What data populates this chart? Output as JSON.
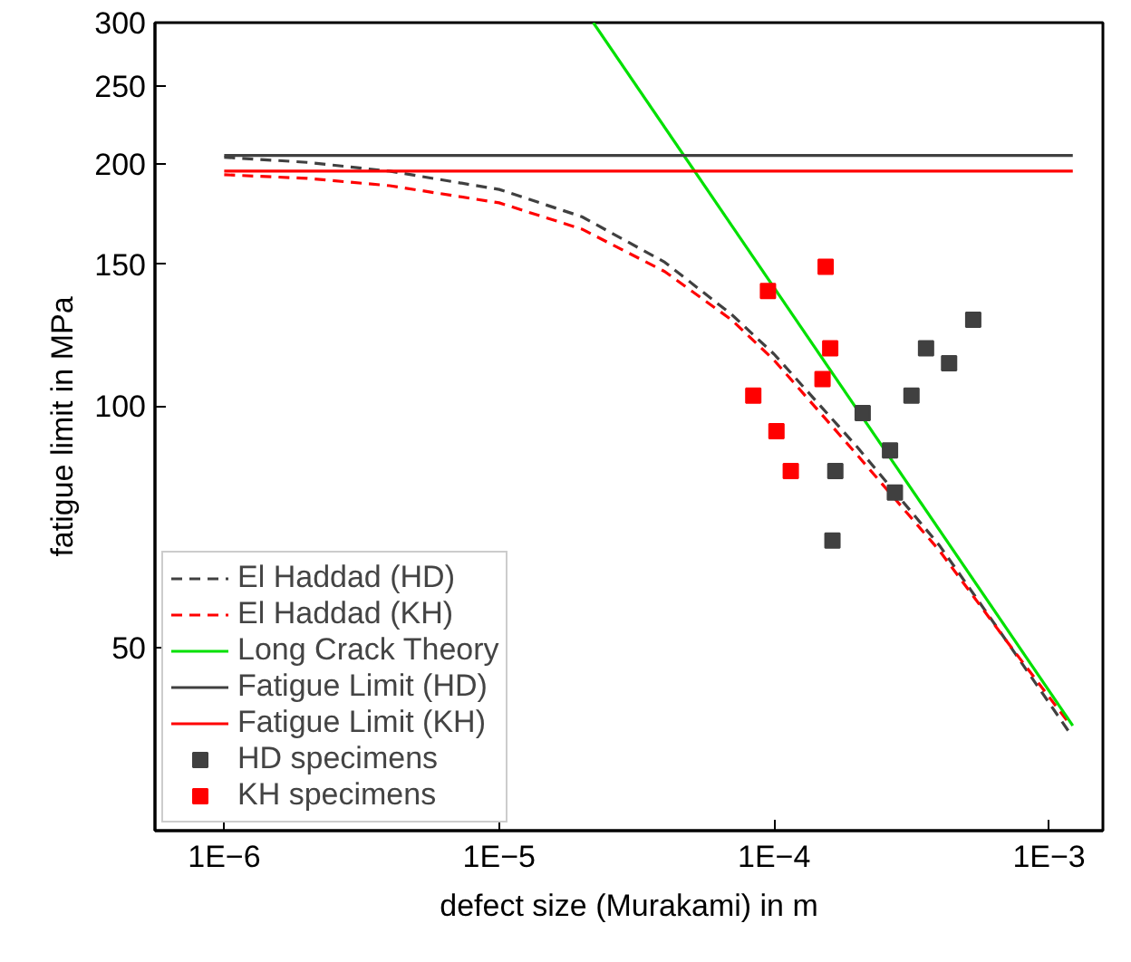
{
  "chart_data": {
    "type": "line",
    "xlabel": "defect size (Murakami) in m",
    "ylabel": "fatigue limit in MPa",
    "log": "xy",
    "grid": false,
    "legend": "bottom left",
    "xlim": [
      5.6e-07,
      0.00157
    ],
    "ylim": [
      29.6,
      300
    ],
    "xticks": [
      {
        "value": 1e-06,
        "label": "1E−6"
      },
      {
        "value": 1e-05,
        "label": "1E−5"
      },
      {
        "value": 0.0001,
        "label": "1E−4"
      },
      {
        "value": 0.001,
        "label": "1E−3"
      }
    ],
    "yticks": [
      50,
      100,
      150,
      200,
      250,
      300
    ],
    "series": [
      {
        "name": "El Haddad (HD)",
        "line_style": "dashed",
        "color": "#404040",
        "x": [
          1e-06,
          2e-06,
          4e-06,
          1e-05,
          2e-05,
          4e-05,
          7e-05,
          0.0001,
          0.0002,
          0.0004,
          0.0007,
          0.0012
        ],
        "values": [
          204,
          201,
          196,
          186,
          172,
          151,
          130,
          116,
          89,
          67,
          51,
          39
        ]
      },
      {
        "name": "El Haddad (KH)",
        "line_style": "dashed",
        "color": "#ff0000",
        "x": [
          1e-06,
          2e-06,
          4e-06,
          1e-05,
          2e-05,
          4e-05,
          7e-05,
          0.0001,
          0.0002,
          0.0004,
          0.0007,
          0.0012
        ],
        "values": [
          194,
          192,
          188,
          179,
          166,
          147,
          128,
          114,
          87,
          66,
          51,
          40
        ]
      },
      {
        "name": "Long Crack Theory",
        "line_style": "solid",
        "color": "#00e000",
        "x": [
          2.2e-05,
          0.00122
        ],
        "values": [
          300,
          40
        ]
      },
      {
        "name": "Fatigue Limit (HD)",
        "line_style": "solid",
        "color": "#404040",
        "x": [
          1e-06,
          0.00122
        ],
        "values": [
          205,
          205
        ]
      },
      {
        "name": "Fatigue Limit (KH)",
        "line_style": "solid",
        "color": "#ff0000",
        "x": [
          1e-06,
          0.00122
        ],
        "values": [
          196,
          196
        ]
      },
      {
        "name": "HD specimens",
        "type": "scatter",
        "marker": "square",
        "color": "#404040",
        "x": [
          0.00053,
          0.000357,
          0.000433,
          0.000316,
          0.00021,
          0.000264,
          0.000167,
          0.000275,
          0.000163
        ],
        "values": [
          128,
          118,
          113,
          103,
          98,
          88,
          83,
          78,
          68
        ]
      },
      {
        "name": "KH specimens",
        "type": "scatter",
        "marker": "square",
        "color": "#ff0000",
        "x": [
          0.000154,
          9.5e-05,
          0.00016,
          0.00015,
          8.4e-05,
          0.000102,
          0.000115
        ],
        "values": [
          149,
          139,
          118,
          108,
          103,
          93,
          83
        ]
      }
    ]
  }
}
